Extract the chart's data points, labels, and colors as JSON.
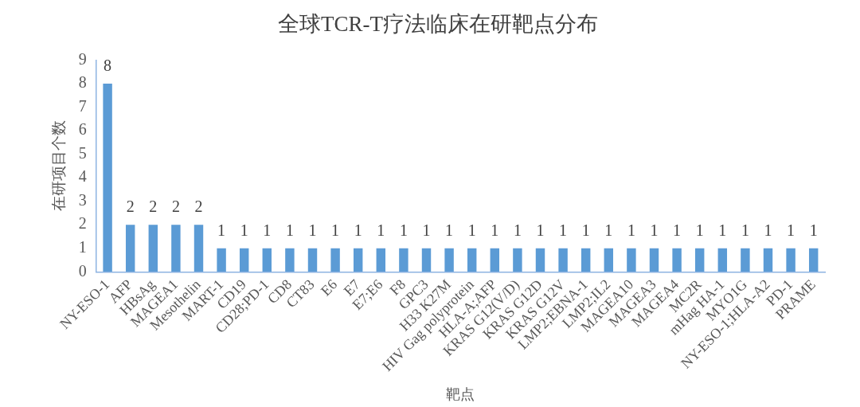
{
  "chart_data": {
    "type": "bar",
    "title": "全球TCR-T疗法临床在研靶点分布",
    "xlabel": "靶点",
    "ylabel": "在研项目个数",
    "categories": [
      "NY-ESO-1",
      "AFP",
      "HBsAg",
      "MAGEA1",
      "Mesothelin",
      "MART-1",
      "CD19",
      "CD28;PD-1",
      "CD8",
      "CT83",
      "E6",
      "E7",
      "E7;E6",
      "F8",
      "GPC3",
      "H33 K27M",
      "HIV Gag polyprotein",
      "HLA-A;AFP",
      "KRAS G12(V/D)",
      "KRAS G12D",
      "KRAS G12V",
      "LMP2;EBNA-1",
      "LMP2;IL2",
      "MAGEA10",
      "MAGEA3",
      "MAGEA4",
      "MC2R",
      "mHag HA-1",
      "MYO1G",
      "NY-ESO-1;HLA-A2",
      "PD-1",
      "PRAME"
    ],
    "values": [
      8,
      2,
      2,
      2,
      2,
      1,
      1,
      1,
      1,
      1,
      1,
      1,
      1,
      1,
      1,
      1,
      1,
      1,
      1,
      1,
      1,
      1,
      1,
      1,
      1,
      1,
      1,
      1,
      1,
      1,
      1,
      1
    ],
    "color": "#5b9bd5",
    "ylim": [
      0,
      9
    ],
    "yticks": [
      0,
      1,
      2,
      3,
      4,
      5,
      6,
      7,
      8,
      9
    ],
    "data_labels": true
  }
}
